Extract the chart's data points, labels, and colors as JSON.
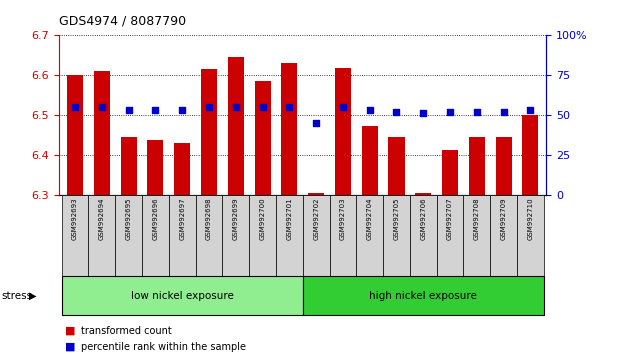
{
  "title": "GDS4974 / 8087790",
  "samples": [
    "GSM992693",
    "GSM992694",
    "GSM992695",
    "GSM992696",
    "GSM992697",
    "GSM992698",
    "GSM992699",
    "GSM992700",
    "GSM992701",
    "GSM992702",
    "GSM992703",
    "GSM992704",
    "GSM992705",
    "GSM992706",
    "GSM992707",
    "GSM992708",
    "GSM992709",
    "GSM992710"
  ],
  "transformed_count": [
    6.6,
    6.61,
    6.445,
    6.438,
    6.43,
    6.615,
    6.645,
    6.585,
    6.63,
    6.305,
    6.618,
    6.473,
    6.445,
    6.305,
    6.413,
    6.445,
    6.445,
    6.5
  ],
  "percentile_rank": [
    55,
    55,
    53,
    53,
    53,
    55,
    55,
    55,
    55,
    45,
    55,
    53,
    52,
    51,
    52,
    52,
    52,
    53
  ],
  "ylim_left": [
    6.3,
    6.7
  ],
  "ylim_right": [
    0,
    100
  ],
  "yticks_left": [
    6.3,
    6.4,
    6.5,
    6.6,
    6.7
  ],
  "yticks_right": [
    0,
    25,
    50,
    75,
    100
  ],
  "bar_color": "#cc0000",
  "dot_color": "#0000cc",
  "bar_base": 6.3,
  "groups": [
    {
      "label": "low nickel exposure",
      "start": 0,
      "end": 9,
      "color": "#90ee90"
    },
    {
      "label": "high nickel exposure",
      "start": 9,
      "end": 18,
      "color": "#32cd32"
    }
  ],
  "group_label_prefix": "stress",
  "legend_items": [
    {
      "label": "transformed count",
      "color": "#cc0000"
    },
    {
      "label": "percentile rank within the sample",
      "color": "#0000cc"
    }
  ],
  "title_color": "black",
  "left_axis_color": "#cc0000",
  "right_axis_color": "#0000cc",
  "grid_color": "black",
  "background_plot": "white",
  "background_xticklabel": "#d3d3d3"
}
